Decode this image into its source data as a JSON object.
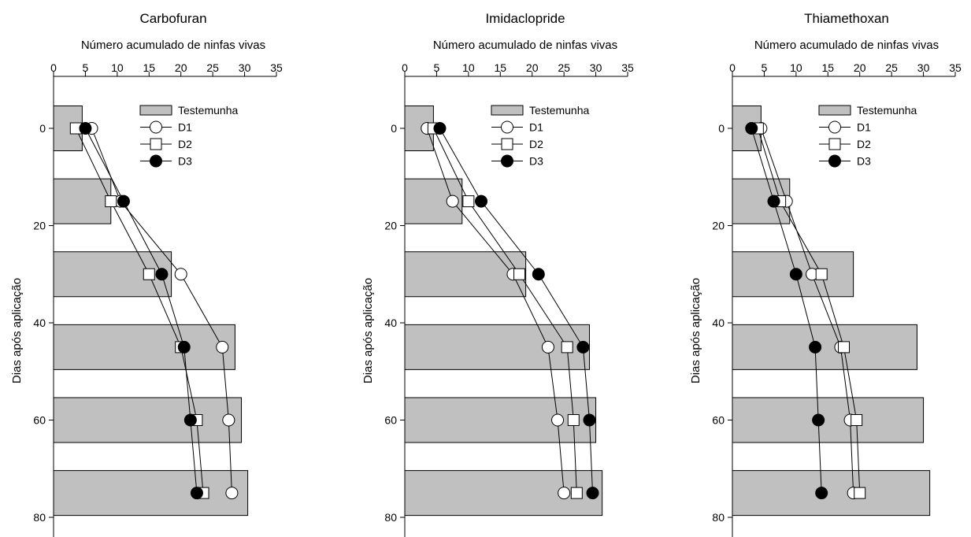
{
  "chart_data": [
    {
      "type": "bar",
      "orientation": "horizontal",
      "title": "Carbofuran",
      "xlabel": "Número acumulado de ninfas vivas",
      "ylabel": "Dias após aplicação",
      "xlim": [
        0,
        35
      ],
      "ylim": [
        0,
        80
      ],
      "xticks": [
        "0",
        "5",
        "10",
        "15",
        "20",
        "25",
        "30",
        "35"
      ],
      "yticks": [
        "0",
        "20",
        "40",
        "60",
        "80"
      ],
      "y": [
        0,
        15,
        30,
        45,
        60,
        75
      ],
      "legend": {
        "position": "top-right",
        "entries": [
          "Testemunha",
          "D1",
          "D2",
          "D3"
        ]
      },
      "series": [
        {
          "name": "Testemunha",
          "kind": "bar",
          "values": [
            4.5,
            9.0,
            18.5,
            28.5,
            29.5,
            30.5
          ]
        },
        {
          "name": "D1",
          "kind": "line",
          "marker": "open-circle",
          "values": [
            6.0,
            10.5,
            20.0,
            26.5,
            27.5,
            28.0
          ]
        },
        {
          "name": "D2",
          "kind": "line",
          "marker": "open-square",
          "values": [
            3.5,
            9.0,
            15.0,
            20.0,
            22.5,
            23.5
          ]
        },
        {
          "name": "D3",
          "kind": "line",
          "marker": "filled-circle",
          "values": [
            5.0,
            11.0,
            17.0,
            20.5,
            21.5,
            22.5
          ]
        }
      ]
    },
    {
      "type": "bar",
      "orientation": "horizontal",
      "title": "Imidaclopride",
      "xlabel": "Número acumulado de ninfas vivas",
      "ylabel": "Dias após aplicação",
      "xlim": [
        0,
        35
      ],
      "ylim": [
        0,
        80
      ],
      "xticks": [
        "0",
        "5",
        "10",
        "15",
        "20",
        "25",
        "30",
        "35"
      ],
      "yticks": [
        "0",
        "20",
        "40",
        "60",
        "80"
      ],
      "y": [
        0,
        15,
        30,
        45,
        60,
        75
      ],
      "legend": {
        "position": "top-right",
        "entries": [
          "Testemunha",
          "D1",
          "D2",
          "D3"
        ]
      },
      "series": [
        {
          "name": "Testemunha",
          "kind": "bar",
          "values": [
            4.5,
            9.0,
            19.0,
            29.0,
            30.0,
            31.0
          ]
        },
        {
          "name": "D1",
          "kind": "line",
          "marker": "open-circle",
          "values": [
            3.5,
            7.5,
            17.0,
            22.5,
            24.0,
            25.0
          ]
        },
        {
          "name": "D2",
          "kind": "line",
          "marker": "open-square",
          "values": [
            4.5,
            10.0,
            18.0,
            25.5,
            26.5,
            27.0
          ]
        },
        {
          "name": "D3",
          "kind": "line",
          "marker": "filled-circle",
          "values": [
            5.5,
            12.0,
            21.0,
            28.0,
            29.0,
            29.5
          ]
        }
      ]
    },
    {
      "type": "bar",
      "orientation": "horizontal",
      "title": "Thiamethoxan",
      "xlabel": "Número acumulado de ninfas vivas",
      "ylabel": "Dias após aplicação",
      "xlim": [
        0,
        35
      ],
      "ylim": [
        0,
        80
      ],
      "xticks": [
        "0",
        "5",
        "10",
        "15",
        "20",
        "25",
        "30",
        "35"
      ],
      "yticks": [
        "0",
        "20",
        "40",
        "60",
        "80"
      ],
      "y": [
        0,
        15,
        30,
        45,
        60,
        75
      ],
      "legend": {
        "position": "top-right",
        "entries": [
          "Testemunha",
          "D1",
          "D2",
          "D3"
        ]
      },
      "series": [
        {
          "name": "Testemunha",
          "kind": "bar",
          "values": [
            4.5,
            9.0,
            19.0,
            29.0,
            30.0,
            31.0
          ]
        },
        {
          "name": "D1",
          "kind": "line",
          "marker": "open-circle",
          "values": [
            4.5,
            8.5,
            12.5,
            17.0,
            18.5,
            19.0
          ]
        },
        {
          "name": "D2",
          "kind": "line",
          "marker": "open-square",
          "values": [
            4.0,
            7.5,
            14.0,
            17.5,
            19.5,
            20.0
          ]
        },
        {
          "name": "D3",
          "kind": "line",
          "marker": "filled-circle",
          "values": [
            3.0,
            6.5,
            10.0,
            13.0,
            13.5,
            14.0
          ]
        }
      ]
    }
  ]
}
